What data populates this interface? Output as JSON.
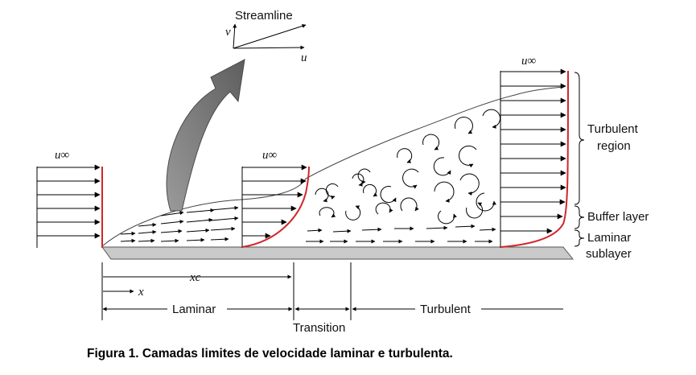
{
  "labels": {
    "streamline": "Streamline",
    "v": "v",
    "u": "u",
    "u_inf_1": "u∞",
    "u_inf_2": "u∞",
    "u_inf_3": "u∞",
    "turbulent_region_1": "Turbulent",
    "turbulent_region_2": "region",
    "buffer_layer": "Buffer layer",
    "laminar_sublayer_1": "Laminar",
    "laminar_sublayer_2": "sublayer",
    "xc": "xc",
    "x": "x",
    "laminar": "Laminar",
    "transition": "Transition",
    "turbulent": "Turbulent"
  },
  "caption": "Figura 1. Camadas limites de velocidade laminar e turbulenta.",
  "colors": {
    "profile": "#d0262b",
    "plate": "#c9c9c9",
    "arrow": "#000000",
    "big_arrow": "#7d7d7d"
  }
}
